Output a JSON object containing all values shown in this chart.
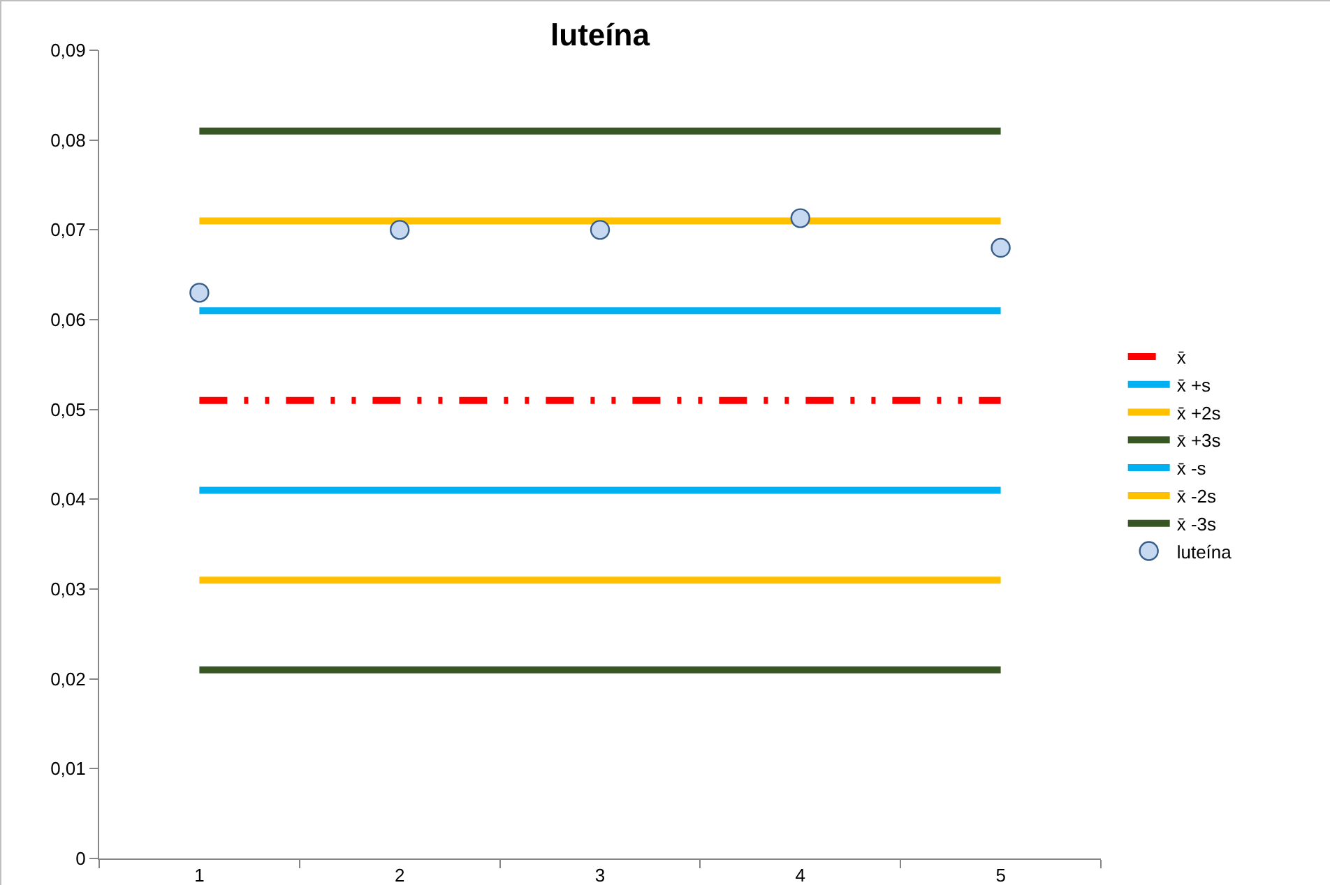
{
  "chart_data": {
    "type": "line",
    "title": "luteína",
    "categories": [
      "1",
      "2",
      "3",
      "4",
      "5"
    ],
    "series": [
      {
        "name": "x̄",
        "color": "#ff0000",
        "line_style": "dashed",
        "values": [
          0.051,
          0.051,
          0.051,
          0.051,
          0.051
        ]
      },
      {
        "name": "x̄ +s",
        "color": "#00b0f0",
        "values": [
          0.061,
          0.061,
          0.061,
          0.061,
          0.061
        ]
      },
      {
        "name": "x̄ +2s",
        "color": "#ffc000",
        "values": [
          0.071,
          0.071,
          0.071,
          0.071,
          0.071
        ]
      },
      {
        "name": "x̄ +3s",
        "color": "#375623",
        "values": [
          0.081,
          0.081,
          0.081,
          0.081,
          0.081
        ]
      },
      {
        "name": "x̄ -s",
        "color": "#00b0f0",
        "values": [
          0.041,
          0.041,
          0.041,
          0.041,
          0.041
        ]
      },
      {
        "name": "x̄ -2s",
        "color": "#ffc000",
        "values": [
          0.031,
          0.031,
          0.031,
          0.031,
          0.031
        ]
      },
      {
        "name": "x̄ -3s",
        "color": "#375623",
        "values": [
          0.021,
          0.021,
          0.021,
          0.021,
          0.021
        ]
      },
      {
        "name": "luteína",
        "type": "scatter",
        "marker": "circle",
        "color": "#c6d9f1",
        "values": [
          0.063,
          0.07,
          0.07,
          0.0713,
          0.068
        ]
      }
    ],
    "ylim": [
      0,
      0.09
    ],
    "yticks": [
      {
        "value": 0,
        "label": "0"
      },
      {
        "value": 0.01,
        "label": "0,01"
      },
      {
        "value": 0.02,
        "label": "0,02"
      },
      {
        "value": 0.03,
        "label": "0,03"
      },
      {
        "value": 0.04,
        "label": "0,04"
      },
      {
        "value": 0.05,
        "label": "0,05"
      },
      {
        "value": 0.06,
        "label": "0,06"
      },
      {
        "value": 0.07,
        "label": "0,07"
      },
      {
        "value": 0.08,
        "label": "0,08"
      },
      {
        "value": 0.09,
        "label": "0,09"
      }
    ],
    "grid": false,
    "legend": "right",
    "line_style": "solid"
  }
}
